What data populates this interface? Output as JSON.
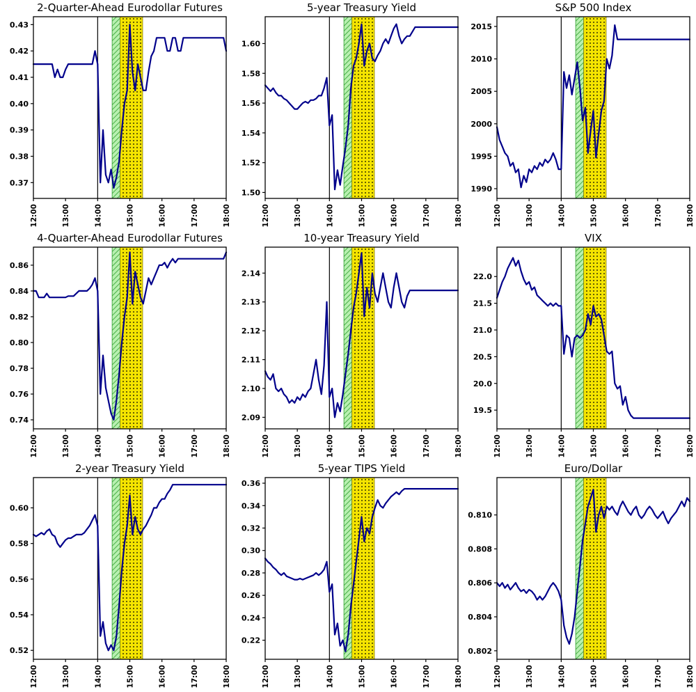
{
  "figure": {
    "description": "3x3 grid of intraday financial time series around a 14:00 event",
    "event_line_label": "14:00"
  },
  "colors": {
    "line": "#00008B",
    "event_line": "#000000",
    "green_band_fill": "#b8f0b0",
    "green_band_hatch": "#2e9e2e",
    "yellow_band_fill": "#f5e400",
    "yellow_band_dot": "#000000",
    "axis": "#000000",
    "background": "#ffffff"
  },
  "x_axis": {
    "min": 0,
    "max": 360,
    "tick_minutes": [
      0,
      60,
      120,
      180,
      240,
      300,
      360
    ],
    "tick_labels": [
      "12:00",
      "13:00",
      "14:00",
      "15:00",
      "16:00",
      "17:00",
      "18:00"
    ]
  },
  "bands": {
    "event_minute": 120,
    "green": [
      147,
      162
    ],
    "yellow": [
      162,
      204
    ]
  },
  "chart_data": [
    {
      "type": "line",
      "id": "2q-eurodollar",
      "title": "2-Quarter-Ahead Eurodollar Futures",
      "ylim": [
        0.364,
        0.433
      ],
      "y_ticks": [
        0.37,
        0.38,
        0.39,
        0.4,
        0.41,
        0.42,
        0.43
      ],
      "y_decimals": 2,
      "step_minutes": 5,
      "values": [
        0.415,
        0.415,
        0.415,
        0.415,
        0.415,
        0.415,
        0.415,
        0.415,
        0.41,
        0.413,
        0.41,
        0.41,
        0.413,
        0.415,
        0.415,
        0.415,
        0.415,
        0.415,
        0.415,
        0.415,
        0.415,
        0.415,
        0.415,
        0.42,
        0.415,
        0.37,
        0.39,
        0.373,
        0.37,
        0.375,
        0.368,
        0.372,
        0.378,
        0.39,
        0.4,
        0.405,
        0.43,
        0.412,
        0.405,
        0.415,
        0.41,
        0.405,
        0.405,
        0.412,
        0.418,
        0.42,
        0.425,
        0.425,
        0.425,
        0.425,
        0.42,
        0.42,
        0.425,
        0.425,
        0.42,
        0.42,
        0.425,
        0.425,
        0.425,
        0.425,
        0.425,
        0.425,
        0.425,
        0.425,
        0.425,
        0.425,
        0.425,
        0.425,
        0.425,
        0.425,
        0.425,
        0.425,
        0.42
      ]
    },
    {
      "type": "line",
      "id": "5y-treasury",
      "title": "5-year Treasury Yield",
      "ylim": [
        1.496,
        1.618
      ],
      "y_ticks": [
        1.5,
        1.52,
        1.54,
        1.56,
        1.58,
        1.6
      ],
      "y_decimals": 2,
      "step_minutes": 5,
      "values": [
        1.572,
        1.57,
        1.568,
        1.57,
        1.567,
        1.565,
        1.565,
        1.563,
        1.562,
        1.56,
        1.558,
        1.556,
        1.556,
        1.558,
        1.56,
        1.561,
        1.56,
        1.562,
        1.562,
        1.563,
        1.565,
        1.565,
        1.57,
        1.577,
        1.545,
        1.552,
        1.502,
        1.515,
        1.505,
        1.518,
        1.53,
        1.545,
        1.57,
        1.585,
        1.59,
        1.6,
        1.613,
        1.585,
        1.595,
        1.6,
        1.59,
        1.588,
        1.592,
        1.595,
        1.6,
        1.603,
        1.6,
        1.605,
        1.61,
        1.613,
        1.605,
        1.6,
        1.603,
        1.605,
        1.605,
        1.608,
        1.611,
        1.611,
        1.611,
        1.611,
        1.611,
        1.611,
        1.611,
        1.611,
        1.611,
        1.611,
        1.611,
        1.611,
        1.611,
        1.611,
        1.611,
        1.611,
        1.611
      ]
    },
    {
      "type": "line",
      "id": "sp500",
      "title": "S&P 500 Index",
      "ylim": [
        1988.5,
        2016.5
      ],
      "y_ticks": [
        1990,
        1995,
        2000,
        2005,
        2010,
        2015
      ],
      "y_decimals": 0,
      "step_minutes": 5,
      "values": [
        1999.5,
        1997.5,
        1996.5,
        1995.5,
        1995.0,
        1993.5,
        1994.0,
        1992.5,
        1993.0,
        1990.2,
        1992.0,
        1991.0,
        1993.0,
        1992.5,
        1993.5,
        1993.0,
        1994.0,
        1993.5,
        1994.5,
        1994.0,
        1994.5,
        1995.5,
        1994.5,
        1993.0,
        1993.0,
        2008.0,
        2005.5,
        2007.5,
        2004.5,
        2007.0,
        2009.5,
        2005.5,
        2000.5,
        2002.5,
        1995.5,
        1999.0,
        2002.0,
        1994.8,
        1998.5,
        2002.0,
        2003.5,
        2010.0,
        2008.5,
        2010.5,
        2015.2,
        2013.0,
        2013.0,
        2013.0,
        2013.0,
        2013.0,
        2013.0,
        2013.0,
        2013.0,
        2013.0,
        2013.0,
        2013.0,
        2013.0,
        2013.0,
        2013.0,
        2013.0,
        2013.0,
        2013.0,
        2013.0,
        2013.0,
        2013.0,
        2013.0,
        2013.0,
        2013.0,
        2013.0,
        2013.0,
        2013.0,
        2013.0,
        2013.0
      ]
    },
    {
      "type": "line",
      "id": "4q-eurodollar",
      "title": "4-Quarter-Ahead Eurodollar Futures",
      "ylim": [
        0.733,
        0.874
      ],
      "y_ticks": [
        0.74,
        0.76,
        0.78,
        0.8,
        0.82,
        0.84,
        0.86
      ],
      "y_decimals": 2,
      "step_minutes": 5,
      "values": [
        0.84,
        0.84,
        0.835,
        0.835,
        0.835,
        0.838,
        0.835,
        0.835,
        0.835,
        0.835,
        0.835,
        0.835,
        0.835,
        0.836,
        0.836,
        0.836,
        0.838,
        0.84,
        0.84,
        0.84,
        0.84,
        0.842,
        0.845,
        0.85,
        0.84,
        0.76,
        0.79,
        0.765,
        0.755,
        0.745,
        0.74,
        0.755,
        0.775,
        0.8,
        0.82,
        0.835,
        0.87,
        0.83,
        0.855,
        0.845,
        0.835,
        0.83,
        0.84,
        0.85,
        0.845,
        0.85,
        0.855,
        0.86,
        0.86,
        0.862,
        0.858,
        0.862,
        0.865,
        0.862,
        0.865,
        0.865,
        0.865,
        0.865,
        0.865,
        0.865,
        0.865,
        0.865,
        0.865,
        0.865,
        0.865,
        0.865,
        0.865,
        0.865,
        0.865,
        0.865,
        0.865,
        0.865,
        0.87
      ]
    },
    {
      "type": "line",
      "id": "10y-treasury",
      "title": "10-year Treasury Yield",
      "ylim": [
        2.086,
        2.149
      ],
      "y_ticks": [
        2.09,
        2.1,
        2.11,
        2.12,
        2.13,
        2.14
      ],
      "y_decimals": 2,
      "step_minutes": 5,
      "values": [
        2.106,
        2.104,
        2.103,
        2.105,
        2.1,
        2.099,
        2.1,
        2.098,
        2.097,
        2.095,
        2.096,
        2.095,
        2.097,
        2.096,
        2.098,
        2.097,
        2.099,
        2.1,
        2.105,
        2.11,
        2.103,
        2.098,
        2.108,
        2.13,
        2.097,
        2.1,
        2.09,
        2.095,
        2.092,
        2.098,
        2.105,
        2.112,
        2.12,
        2.128,
        2.133,
        2.14,
        2.147,
        2.125,
        2.135,
        2.128,
        2.14,
        2.133,
        2.13,
        2.135,
        2.14,
        2.135,
        2.13,
        2.128,
        2.135,
        2.14,
        2.135,
        2.13,
        2.128,
        2.132,
        2.134,
        2.134,
        2.134,
        2.134,
        2.134,
        2.134,
        2.134,
        2.134,
        2.134,
        2.134,
        2.134,
        2.134,
        2.134,
        2.134,
        2.134,
        2.134,
        2.134,
        2.134,
        2.134
      ]
    },
    {
      "type": "line",
      "id": "vix",
      "title": "VIX",
      "ylim": [
        19.15,
        22.55
      ],
      "y_ticks": [
        19.5,
        20.0,
        20.5,
        21.0,
        21.5,
        22.0
      ],
      "y_decimals": 1,
      "step_minutes": 5,
      "values": [
        21.6,
        21.75,
        21.9,
        22.0,
        22.15,
        22.25,
        22.35,
        22.2,
        22.3,
        22.1,
        21.95,
        21.85,
        21.9,
        21.75,
        21.8,
        21.65,
        21.6,
        21.55,
        21.5,
        21.45,
        21.5,
        21.45,
        21.5,
        21.45,
        21.45,
        20.55,
        20.9,
        20.85,
        20.5,
        20.85,
        20.9,
        20.85,
        20.9,
        21.0,
        21.3,
        21.1,
        21.45,
        21.25,
        21.3,
        21.2,
        20.9,
        20.6,
        20.55,
        20.6,
        20.0,
        19.9,
        19.95,
        19.6,
        19.75,
        19.5,
        19.4,
        19.35,
        19.35,
        19.35,
        19.35,
        19.35,
        19.35,
        19.35,
        19.35,
        19.35,
        19.35,
        19.35,
        19.35,
        19.35,
        19.35,
        19.35,
        19.35,
        19.35,
        19.35,
        19.35,
        19.35,
        19.35,
        19.35
      ]
    },
    {
      "type": "line",
      "id": "2y-treasury",
      "title": "2-year Treasury Yield",
      "ylim": [
        0.515,
        0.617
      ],
      "y_ticks": [
        0.52,
        0.54,
        0.56,
        0.58,
        0.6
      ],
      "y_decimals": 2,
      "step_minutes": 5,
      "values": [
        0.585,
        0.584,
        0.585,
        0.586,
        0.585,
        0.587,
        0.588,
        0.585,
        0.584,
        0.58,
        0.578,
        0.58,
        0.582,
        0.583,
        0.583,
        0.584,
        0.585,
        0.585,
        0.585,
        0.586,
        0.588,
        0.59,
        0.593,
        0.596,
        0.59,
        0.528,
        0.536,
        0.524,
        0.52,
        0.523,
        0.52,
        0.528,
        0.545,
        0.565,
        0.58,
        0.59,
        0.607,
        0.585,
        0.595,
        0.588,
        0.585,
        0.588,
        0.59,
        0.593,
        0.596,
        0.6,
        0.6,
        0.603,
        0.605,
        0.605,
        0.608,
        0.61,
        0.613,
        0.613,
        0.613,
        0.613,
        0.613,
        0.613,
        0.613,
        0.613,
        0.613,
        0.613,
        0.613,
        0.613,
        0.613,
        0.613,
        0.613,
        0.613,
        0.613,
        0.613,
        0.613,
        0.613,
        0.613
      ]
    },
    {
      "type": "line",
      "id": "5y-tips",
      "title": "5-year TIPS Yield",
      "ylim": [
        0.203,
        0.365
      ],
      "y_ticks": [
        0.22,
        0.24,
        0.26,
        0.28,
        0.3,
        0.32,
        0.34,
        0.36
      ],
      "y_decimals": 2,
      "step_minutes": 5,
      "values": [
        0.293,
        0.29,
        0.288,
        0.285,
        0.283,
        0.28,
        0.278,
        0.28,
        0.277,
        0.276,
        0.275,
        0.274,
        0.274,
        0.275,
        0.274,
        0.275,
        0.276,
        0.277,
        0.278,
        0.28,
        0.278,
        0.28,
        0.283,
        0.29,
        0.263,
        0.27,
        0.225,
        0.235,
        0.215,
        0.22,
        0.21,
        0.225,
        0.25,
        0.27,
        0.29,
        0.31,
        0.33,
        0.308,
        0.32,
        0.315,
        0.33,
        0.338,
        0.345,
        0.34,
        0.338,
        0.342,
        0.345,
        0.348,
        0.35,
        0.352,
        0.35,
        0.353,
        0.355,
        0.355,
        0.355,
        0.355,
        0.355,
        0.355,
        0.355,
        0.355,
        0.355,
        0.355,
        0.355,
        0.355,
        0.355,
        0.355,
        0.355,
        0.355,
        0.355,
        0.355,
        0.355,
        0.355,
        0.355
      ]
    },
    {
      "type": "line",
      "id": "euro-dollar",
      "title": "Euro/Dollar",
      "ylim": [
        0.8015,
        0.8122
      ],
      "y_ticks": [
        0.802,
        0.804,
        0.806,
        0.808,
        0.81
      ],
      "y_decimals": 3,
      "step_minutes": 5,
      "values": [
        0.806,
        0.8058,
        0.806,
        0.8057,
        0.8059,
        0.8056,
        0.8058,
        0.806,
        0.8057,
        0.8055,
        0.8056,
        0.8054,
        0.8056,
        0.8055,
        0.8053,
        0.805,
        0.8052,
        0.805,
        0.8052,
        0.8055,
        0.8058,
        0.806,
        0.8058,
        0.8055,
        0.805,
        0.8035,
        0.8028,
        0.8024,
        0.803,
        0.804,
        0.8055,
        0.807,
        0.8085,
        0.8095,
        0.8105,
        0.811,
        0.8115,
        0.809,
        0.81,
        0.8105,
        0.8098,
        0.8105,
        0.8103,
        0.8105,
        0.8102,
        0.81,
        0.8105,
        0.8108,
        0.8105,
        0.8102,
        0.81,
        0.8103,
        0.8105,
        0.81,
        0.8098,
        0.81,
        0.8103,
        0.8105,
        0.8103,
        0.81,
        0.8098,
        0.81,
        0.8102,
        0.8098,
        0.8095,
        0.8098,
        0.81,
        0.8102,
        0.8105,
        0.8108,
        0.8105,
        0.811,
        0.8108
      ]
    }
  ]
}
